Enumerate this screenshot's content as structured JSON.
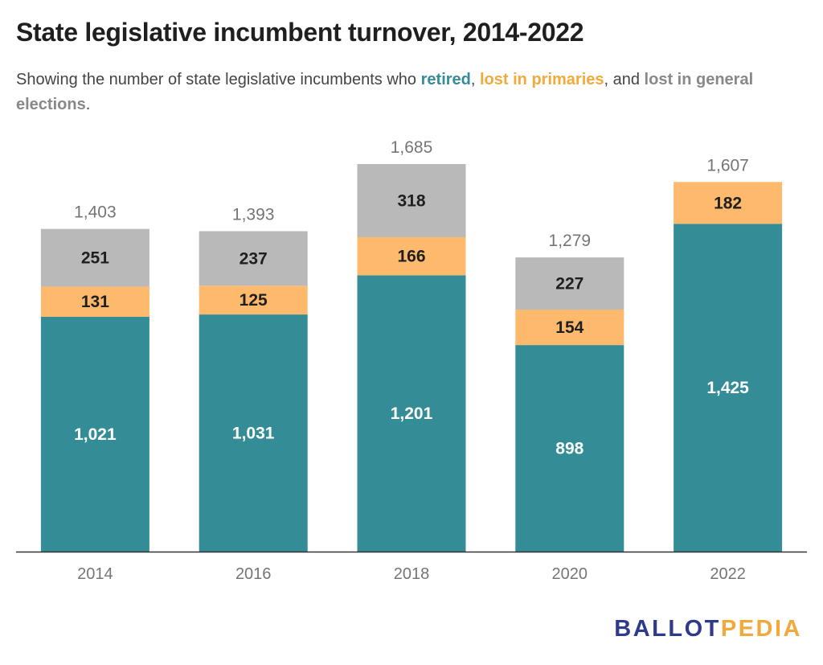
{
  "title": "State legislative incumbent turnover, 2014-2022",
  "subtitle": {
    "prefix": "Showing the number of state legislative incumbents who ",
    "retired": "retired",
    "sep1": ", ",
    "lost_primaries": "lost in primaries",
    "sep2": ", and ",
    "lost_general": "lost in general elections",
    "suffix": "."
  },
  "colors": {
    "retired": "#348d96",
    "lost_primaries": "#fdb96c",
    "lost_general": "#b9b9b9",
    "total_label": "#757575",
    "axis": "#333333"
  },
  "logo": {
    "part1": "BALLOT",
    "part2": "PEDIA"
  },
  "chart_data": {
    "type": "bar",
    "stacked": true,
    "categories": [
      "2014",
      "2016",
      "2018",
      "2020",
      "2022"
    ],
    "series": [
      {
        "name": "retired",
        "values": [
          1021,
          1031,
          1201,
          898,
          1425
        ]
      },
      {
        "name": "lost in primaries",
        "values": [
          131,
          125,
          166,
          154,
          182
        ]
      },
      {
        "name": "lost in general elections",
        "values": [
          251,
          237,
          318,
          227,
          0
        ]
      }
    ],
    "totals": [
      1403,
      1393,
      1685,
      1279,
      1607
    ],
    "ylim": [
      0,
      1685
    ],
    "grid": false
  }
}
